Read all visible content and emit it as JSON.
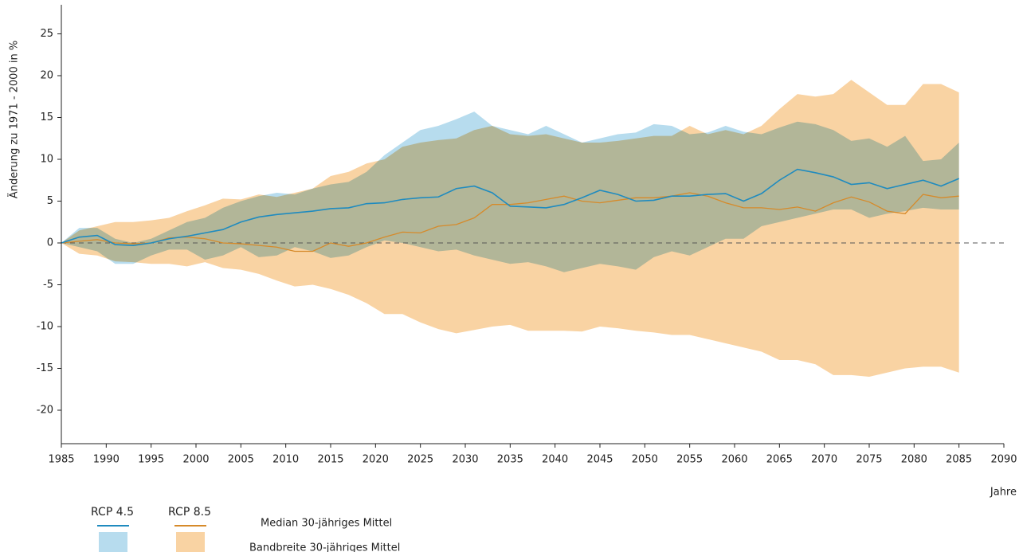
{
  "chart_data": {
    "type": "line",
    "y_label": "Änderung zu 1971 - 2000 in %",
    "x_label": "Jahre",
    "x": [
      1985,
      1987,
      1989,
      1991,
      1993,
      1995,
      1997,
      1999,
      2001,
      2003,
      2005,
      2007,
      2009,
      2011,
      2013,
      2015,
      2017,
      2019,
      2021,
      2023,
      2025,
      2027,
      2029,
      2031,
      2033,
      2035,
      2037,
      2039,
      2041,
      2043,
      2045,
      2047,
      2049,
      2051,
      2053,
      2055,
      2057,
      2059,
      2061,
      2063,
      2065,
      2067,
      2069,
      2071,
      2073,
      2075,
      2077,
      2079,
      2081,
      2083,
      2085
    ],
    "series": [
      {
        "name": "RCP 4.5",
        "color": "#1f8bbf",
        "band_color": "#b7dcee",
        "values": [
          0,
          0.7,
          0.9,
          -0.2,
          -0.3,
          0,
          0.5,
          0.8,
          1.2,
          1.6,
          2.5,
          3.1,
          3.4,
          3.6,
          3.8,
          4.1,
          4.2,
          4.7,
          4.8,
          5.2,
          5.4,
          5.5,
          6.5,
          6.8,
          6.0,
          4.4,
          4.3,
          4.2,
          4.6,
          5.4,
          6.3,
          5.8,
          5.0,
          5.1,
          5.6,
          5.6,
          5.8,
          5.9,
          5.0,
          5.9,
          7.5,
          8.8,
          8.4,
          7.9,
          7.0,
          7.2,
          6.5,
          7.0,
          7.5,
          6.8,
          7.7
        ],
        "upper": [
          0,
          1.8,
          1.8,
          0.5,
          0,
          0.5,
          1.5,
          2.5,
          3.0,
          4.2,
          5.0,
          5.6,
          6.0,
          5.8,
          6.5,
          7.0,
          7.3,
          8.5,
          10.5,
          12.0,
          13.5,
          14.0,
          14.8,
          15.7,
          14.0,
          13.5,
          13.0,
          14.0,
          13.0,
          12.0,
          12.5,
          13.0,
          13.2,
          14.2,
          14.0,
          13.0,
          13.2,
          14.0,
          13.3,
          13.0,
          13.8,
          14.5,
          14.2,
          13.5,
          12.2,
          12.5,
          11.5,
          12.8,
          9.8,
          10.0,
          12.0
        ],
        "lower": [
          0,
          -0.5,
          -1.0,
          -2.5,
          -2.5,
          -1.5,
          -0.8,
          -0.8,
          -2.0,
          -1.5,
          -0.5,
          -1.7,
          -1.5,
          -0.5,
          -1.0,
          -1.8,
          -1.5,
          -0.5,
          0.3,
          0,
          -0.5,
          -1.0,
          -0.8,
          -1.5,
          -2.0,
          -2.5,
          -2.3,
          -2.8,
          -3.5,
          -3.0,
          -2.5,
          -2.8,
          -3.2,
          -1.7,
          -1.0,
          -1.5,
          -0.5,
          0.5,
          0.5,
          2.0,
          2.5,
          3.0,
          3.5,
          4.0,
          4.0,
          3.0,
          3.5,
          3.8,
          4.2,
          4.0,
          4.0
        ]
      },
      {
        "name": "RCP 8.5",
        "color": "#d68a2a",
        "band_color": "#f9d3a3",
        "values": [
          0,
          0.2,
          0.4,
          0,
          -0.1,
          0,
          0.6,
          0.7,
          0.5,
          0,
          -0.1,
          -0.3,
          -0.5,
          -1.0,
          -1.0,
          0,
          -0.4,
          0,
          0.7,
          1.3,
          1.2,
          2.0,
          2.2,
          3.0,
          4.6,
          4.6,
          4.8,
          5.2,
          5.6,
          5.0,
          4.8,
          5.1,
          5.4,
          5.4,
          5.6,
          6.0,
          5.6,
          4.8,
          4.2,
          4.2,
          4.0,
          4.3,
          3.8,
          4.8,
          5.5,
          4.9,
          3.8,
          3.5,
          5.8,
          5.4,
          5.6
        ],
        "upper": [
          0,
          1.5,
          2.0,
          2.5,
          2.5,
          2.7,
          3.0,
          3.8,
          4.5,
          5.3,
          5.2,
          5.8,
          5.5,
          6.0,
          6.5,
          8.0,
          8.5,
          9.5,
          10.0,
          11.5,
          12.0,
          12.3,
          12.5,
          13.5,
          14.0,
          13.0,
          12.8,
          13.0,
          12.5,
          12.0,
          12.0,
          12.2,
          12.5,
          12.8,
          12.8,
          14.0,
          13.0,
          13.5,
          13.0,
          14.0,
          16.0,
          17.8,
          17.5,
          17.8,
          19.5,
          18.0,
          16.5,
          16.5,
          19.0,
          19.0,
          18.0
        ],
        "lower": [
          0,
          -1.3,
          -1.5,
          -2.2,
          -2.3,
          -2.5,
          -2.5,
          -2.8,
          -2.3,
          -3.0,
          -3.2,
          -3.7,
          -4.5,
          -5.2,
          -5.0,
          -5.5,
          -6.2,
          -7.2,
          -8.5,
          -8.5,
          -9.5,
          -10.3,
          -10.8,
          -10.4,
          -10.0,
          -9.8,
          -10.5,
          -10.5,
          -10.5,
          -10.6,
          -10.0,
          -10.2,
          -10.5,
          -10.7,
          -11.0,
          -11.0,
          -11.5,
          -12.0,
          -12.5,
          -13.0,
          -14.0,
          -14.0,
          -14.5,
          -15.8,
          -15.8,
          -16.0,
          -15.5,
          -15.0,
          -14.8,
          -14.8,
          -15.5
        ]
      }
    ],
    "legend_rows": [
      "Median 30-jähriges Mittel",
      "Bandbreite 30-jähriges Mittel"
    ],
    "reference_line": 0,
    "xlim": [
      1985,
      2090
    ],
    "xticks": [
      1985,
      1990,
      1995,
      2000,
      2005,
      2010,
      2015,
      2020,
      2025,
      2030,
      2035,
      2040,
      2045,
      2050,
      2055,
      2060,
      2065,
      2070,
      2075,
      2080,
      2085,
      2090
    ],
    "ylim": [
      -24,
      28
    ],
    "yticks": [
      -20,
      -15,
      -10,
      -5,
      0,
      5,
      10,
      15,
      20,
      25
    ],
    "grid": false
  }
}
